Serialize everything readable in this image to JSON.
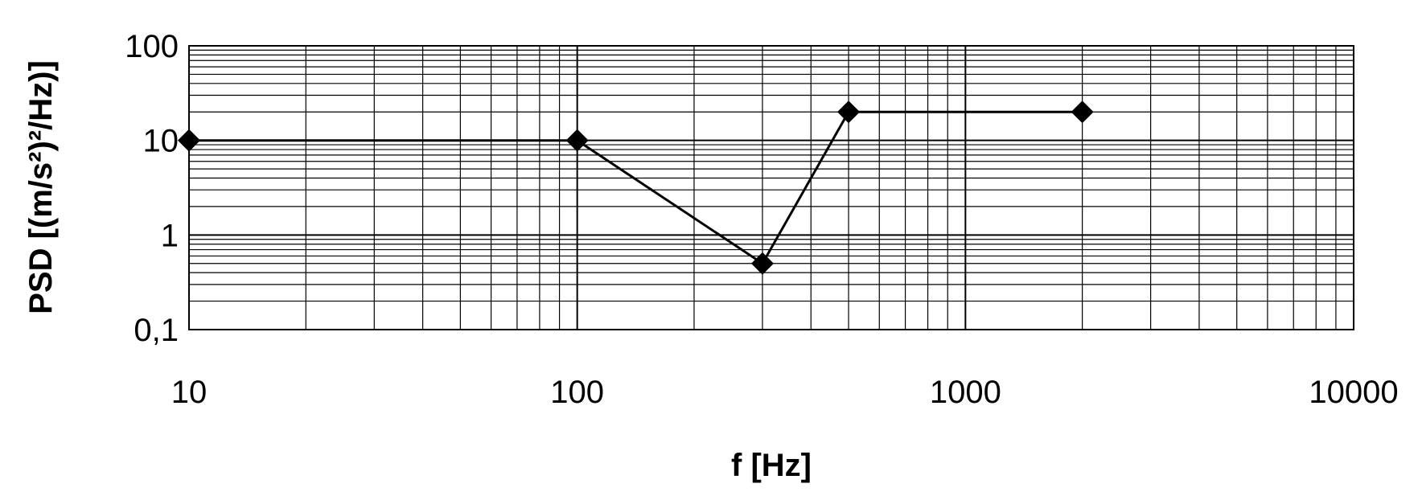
{
  "chart_data": {
    "type": "line",
    "title": "",
    "xlabel": "f [Hz]",
    "ylabel": "PSD [(m/s²)²/Hz)]",
    "x_scale": "log",
    "y_scale": "log",
    "xlim": [
      10,
      10000
    ],
    "ylim": [
      0.1,
      100
    ],
    "x_ticks": [
      {
        "value": 10,
        "label": "10"
      },
      {
        "value": 100,
        "label": "100"
      },
      {
        "value": 1000,
        "label": "1000"
      },
      {
        "value": 10000,
        "label": "10000"
      }
    ],
    "y_ticks": [
      {
        "value": 100,
        "label": "100"
      },
      {
        "value": 10,
        "label": "10"
      },
      {
        "value": 1,
        "label": "1"
      },
      {
        "value": 0.1,
        "label": "0,1"
      }
    ],
    "grid": true,
    "legend": false,
    "series": [
      {
        "marker": "diamond",
        "color": "#000000",
        "x": [
          10,
          100,
          300,
          500,
          2000
        ],
        "y": [
          10,
          10,
          0.5,
          20,
          20
        ]
      }
    ]
  }
}
